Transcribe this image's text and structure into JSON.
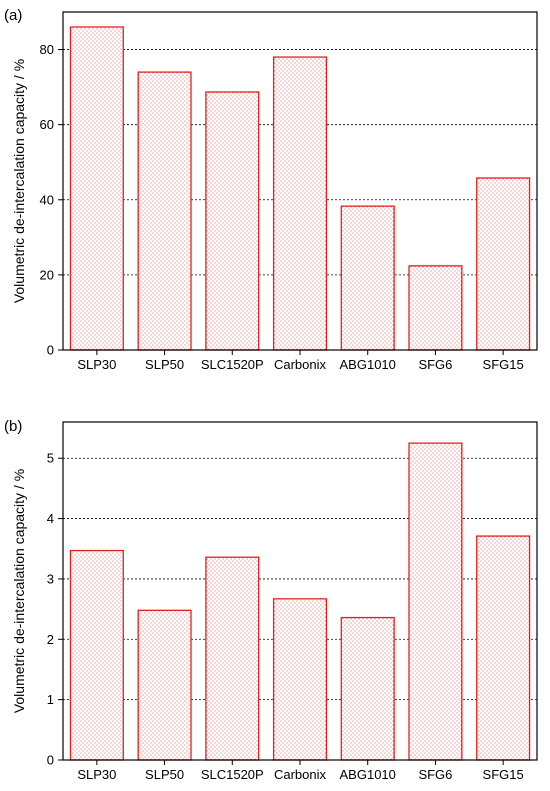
{
  "chart_data": [
    {
      "type": "bar",
      "panel_label": "(a)",
      "categories": [
        "SLP30",
        "SLP50",
        "SLC1520P",
        "Carbonix",
        "ABG1010",
        "SFG6",
        "SFG15"
      ],
      "values": [
        86,
        74,
        68.7,
        78,
        38.3,
        22.4,
        45.8
      ],
      "ylabel": "Volumetric de-intercalation capacity / %",
      "ylim": [
        0,
        90
      ],
      "yticks": [
        0,
        20,
        40,
        60,
        80
      ],
      "grid": true,
      "bar_color": "#e02020"
    },
    {
      "type": "bar",
      "panel_label": "(b)",
      "categories": [
        "SLP30",
        "SLP50",
        "SLC1520P",
        "Carbonix",
        "ABG1010",
        "SFG6",
        "SFG15"
      ],
      "values": [
        3.47,
        2.48,
        3.36,
        2.67,
        2.36,
        5.25,
        3.71
      ],
      "ylabel": "Volumetric de-intercalation capacity / %",
      "ylim": [
        0,
        5.6
      ],
      "yticks": [
        0,
        1,
        2,
        3,
        4,
        5
      ],
      "grid": true,
      "bar_color": "#e02020"
    }
  ]
}
